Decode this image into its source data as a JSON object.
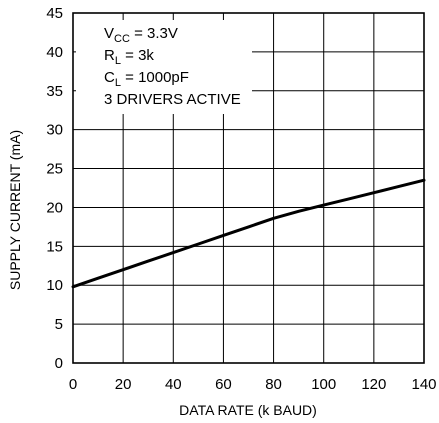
{
  "chart_data": {
    "type": "line",
    "xlabel": "DATA RATE (k BAUD)",
    "ylabel": "SUPPLY CURRENT (mA)",
    "xlim": [
      0,
      140
    ],
    "ylim": [
      0,
      45
    ],
    "x_ticks": [
      "0",
      "20",
      "40",
      "60",
      "80",
      "100",
      "120",
      "140"
    ],
    "y_ticks": [
      "0",
      "5",
      "10",
      "15",
      "20",
      "25",
      "30",
      "35",
      "40",
      "45"
    ],
    "grid": true,
    "series": [
      {
        "x": [
          0,
          10,
          20,
          30,
          40,
          50,
          60,
          70,
          80,
          90,
          100,
          110,
          120,
          130,
          140
        ],
        "values": [
          9.8,
          10.9,
          12.0,
          13.1,
          14.2,
          15.3,
          16.4,
          17.5,
          18.6,
          19.5,
          20.3,
          21.1,
          21.9,
          22.7,
          23.5
        ]
      }
    ],
    "annotation": {
      "vcc_main": "V",
      "vcc_sub": "CC",
      "vcc_value": " = 3.3V",
      "rl_main": "R",
      "rl_sub": "L",
      "rl_value": " = 3k",
      "cl_main": "C",
      "cl_sub": "L",
      "cl_value": " = 1000pF",
      "drivers": "3 DRIVERS ACTIVE"
    }
  }
}
